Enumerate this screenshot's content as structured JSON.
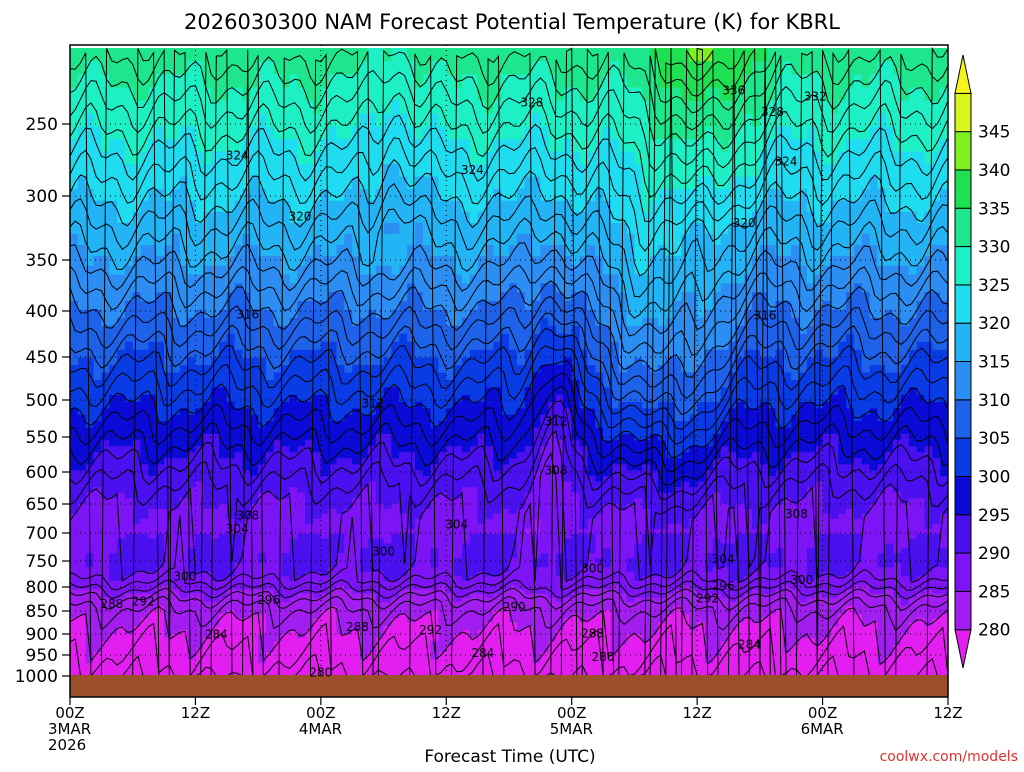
{
  "chart_data": {
    "type": "heatmap",
    "title": "2026030300 NAM Forecast Potential Temperature (K) for KBRL",
    "xlabel": "Forecast Time (UTC)",
    "ylabel": "",
    "x_range_hours": [
      0,
      84
    ],
    "y_range_mb": [
      200,
      1000
    ],
    "x_ticks": [
      {
        "hour": 0,
        "lines": [
          "00Z",
          "3MAR",
          "2026"
        ]
      },
      {
        "hour": 12,
        "lines": [
          "12Z"
        ]
      },
      {
        "hour": 24,
        "lines": [
          "00Z",
          "4MAR"
        ]
      },
      {
        "hour": 36,
        "lines": [
          "12Z"
        ]
      },
      {
        "hour": 48,
        "lines": [
          "00Z",
          "5MAR"
        ]
      },
      {
        "hour": 60,
        "lines": [
          "12Z"
        ]
      },
      {
        "hour": 72,
        "lines": [
          "00Z",
          "6MAR"
        ]
      },
      {
        "hour": 84,
        "lines": [
          "12Z"
        ]
      }
    ],
    "y_ticks": [
      250,
      300,
      350,
      400,
      450,
      500,
      550,
      600,
      650,
      700,
      750,
      800,
      850,
      900,
      950,
      1000
    ],
    "colorbar": {
      "levels": [
        280,
        285,
        290,
        295,
        300,
        305,
        310,
        315,
        320,
        325,
        330,
        335,
        340,
        345
      ],
      "colors": [
        "#e21ef0",
        "#a21ef0",
        "#7d14f5",
        "#4a10f0",
        "#0b0bd8",
        "#0a3ce6",
        "#1f62ea",
        "#2c8ef2",
        "#22b4f4",
        "#1fdcf0",
        "#1ef0c6",
        "#1ee68c",
        "#1ee050",
        "#7ef01e",
        "#d8f51e",
        "#f5f51e"
      ]
    },
    "contour_interval_K": 2,
    "contour_labels": [
      {
        "value": "336",
        "hour": 63.5,
        "mb": 228
      },
      {
        "value": "332",
        "hour": 71.3,
        "mb": 232
      },
      {
        "value": "328",
        "hour": 44.2,
        "mb": 236
      },
      {
        "value": "328",
        "hour": 67.2,
        "mb": 242
      },
      {
        "value": "324",
        "hour": 16,
        "mb": 272
      },
      {
        "value": "324",
        "hour": 38.5,
        "mb": 282
      },
      {
        "value": "324",
        "hour": 68.5,
        "mb": 276
      },
      {
        "value": "320",
        "hour": 22,
        "mb": 316
      },
      {
        "value": "320",
        "hour": 64.5,
        "mb": 321
      },
      {
        "value": "316",
        "hour": 17,
        "mb": 404
      },
      {
        "value": "316",
        "hour": 66.5,
        "mb": 405
      },
      {
        "value": "312",
        "hour": 29,
        "mb": 505
      },
      {
        "value": "312",
        "hour": 46.5,
        "mb": 529
      },
      {
        "value": "308",
        "hour": 46.5,
        "mb": 598
      },
      {
        "value": "308",
        "hour": 17,
        "mb": 670
      },
      {
        "value": "308",
        "hour": 69.5,
        "mb": 667
      },
      {
        "value": "304",
        "hour": 16,
        "mb": 693
      },
      {
        "value": "304",
        "hour": 37,
        "mb": 685
      },
      {
        "value": "304",
        "hour": 62.5,
        "mb": 746
      },
      {
        "value": "300",
        "hour": 30,
        "mb": 733
      },
      {
        "value": "300",
        "hour": 11,
        "mb": 780
      },
      {
        "value": "300",
        "hour": 50,
        "mb": 764
      },
      {
        "value": "300",
        "hour": 70,
        "mb": 787
      },
      {
        "value": "296",
        "hour": 19,
        "mb": 827
      },
      {
        "value": "296",
        "hour": 62.5,
        "mb": 798
      },
      {
        "value": "292",
        "hour": 7,
        "mb": 830
      },
      {
        "value": "292",
        "hour": 34.5,
        "mb": 891
      },
      {
        "value": "292",
        "hour": 61,
        "mb": 824
      },
      {
        "value": "290",
        "hour": 42.5,
        "mb": 842
      },
      {
        "value": "288",
        "hour": 4,
        "mb": 835
      },
      {
        "value": "288",
        "hour": 27.5,
        "mb": 885
      },
      {
        "value": "288",
        "hour": 50,
        "mb": 899
      },
      {
        "value": "284",
        "hour": 14,
        "mb": 901
      },
      {
        "value": "284",
        "hour": 39.5,
        "mb": 945
      },
      {
        "value": "284",
        "hour": 65,
        "mb": 925
      },
      {
        "value": "280",
        "hour": 24,
        "mb": 992
      },
      {
        "value": "280",
        "hour": 51,
        "mb": 955
      }
    ]
  },
  "watermark": "coolwx.com/models"
}
